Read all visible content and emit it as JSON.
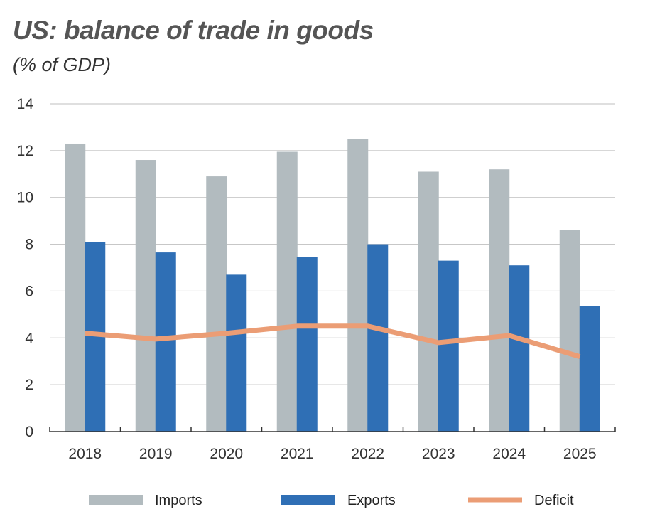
{
  "chart_data": {
    "type": "bar",
    "title": "US: balance of trade in goods",
    "subtitle": "(% of GDP)",
    "xlabel": "",
    "ylabel": "",
    "ylim": [
      0,
      14
    ],
    "yticks": [
      "0",
      "2",
      "4",
      "6",
      "8",
      "10",
      "12",
      "14"
    ],
    "categories": [
      "2018",
      "2019",
      "2020",
      "2021",
      "2022",
      "2023",
      "2024",
      "2025"
    ],
    "series": [
      {
        "name": "Imports",
        "kind": "bar",
        "color": "#b2bbbf",
        "values": [
          12.3,
          11.6,
          10.9,
          11.95,
          12.5,
          11.1,
          11.2,
          8.6
        ]
      },
      {
        "name": "Exports",
        "kind": "bar",
        "color": "#2f6fb5",
        "values": [
          8.1,
          7.65,
          6.7,
          7.45,
          8.0,
          7.3,
          7.1,
          5.35
        ]
      },
      {
        "name": "Deficit",
        "kind": "line",
        "color": "#eb9d75",
        "values": [
          4.2,
          3.95,
          4.2,
          4.5,
          4.5,
          3.8,
          4.1,
          3.2
        ]
      }
    ],
    "grid": true,
    "legend": "bottom"
  }
}
